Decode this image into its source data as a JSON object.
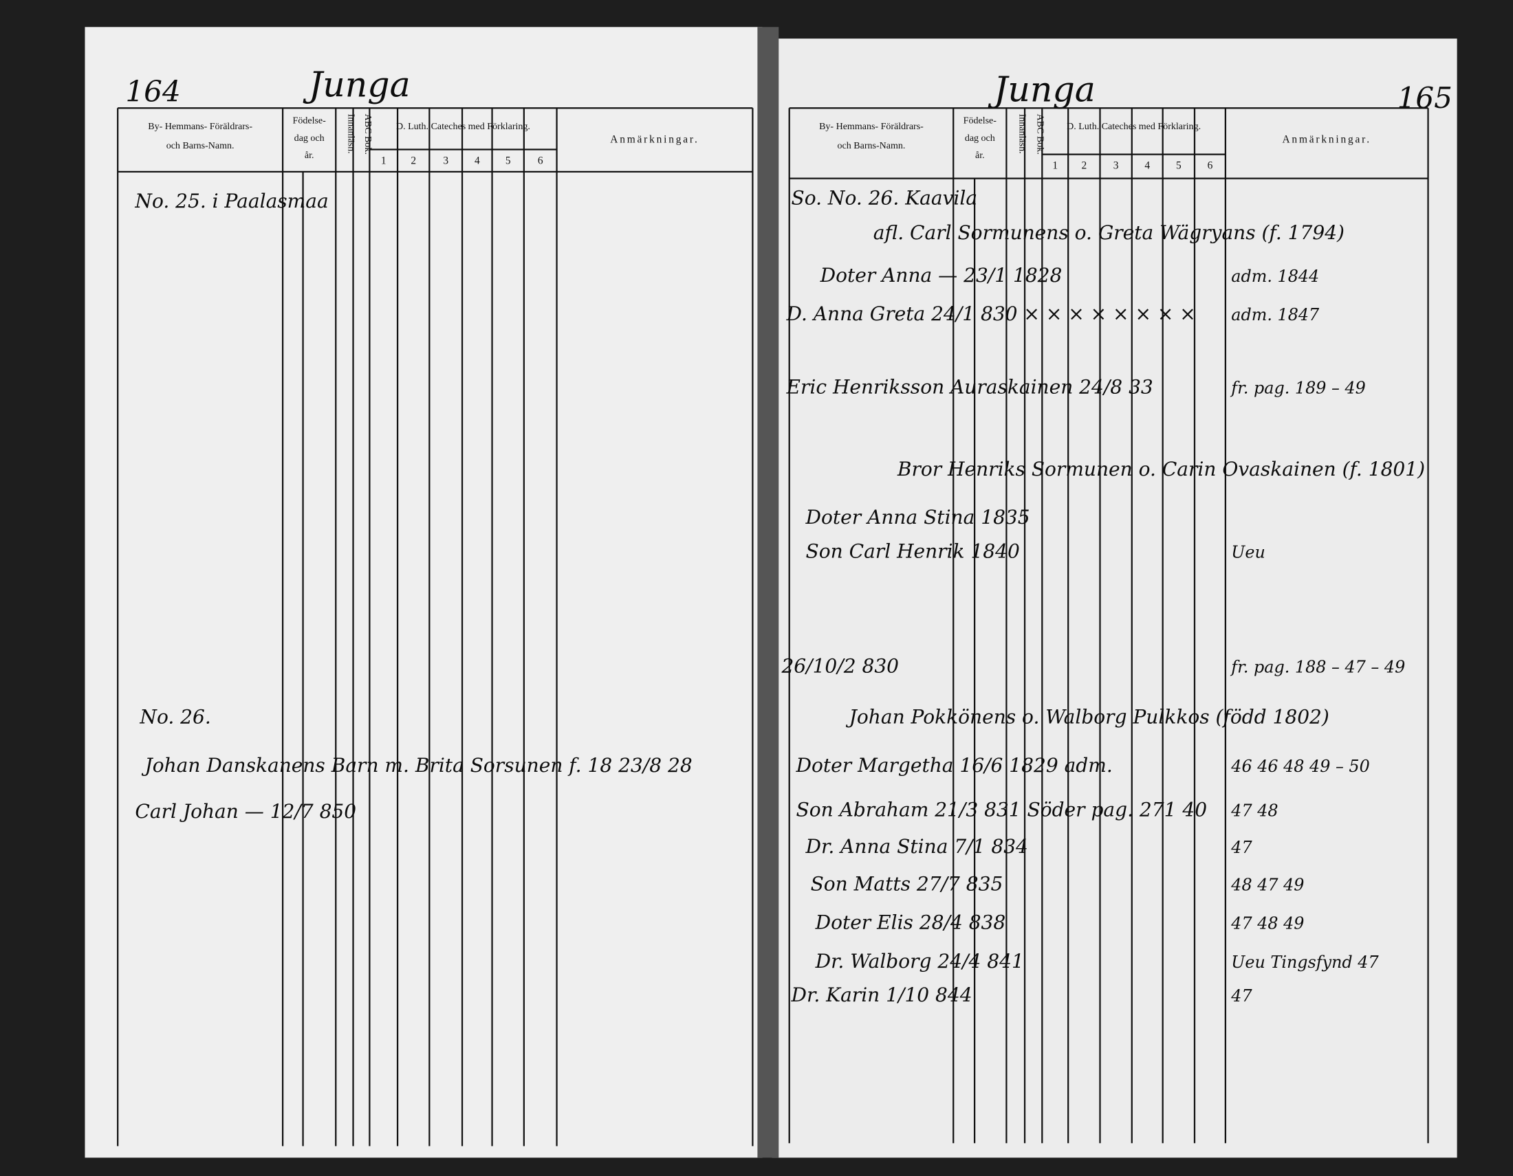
{
  "left_page": {
    "page_number": "164",
    "parish": "Junga",
    "headers": {
      "name": [
        "By- Hemmans- Föräldrars-",
        "och Barns-Namn."
      ],
      "birth": [
        "Födelse-",
        "dag och",
        "år."
      ],
      "reading": "Innanläsn.",
      "abc": "ABC Bok.",
      "catechism": "D. Luth. Cateches med Förklaring.",
      "catechism_numbers": [
        "1",
        "2",
        "3",
        "4",
        "5",
        "6"
      ],
      "remarks": "Anmärkningar."
    },
    "entries": [
      {
        "text": "No. 25. i Paalasmaa"
      },
      {
        "text": "No. 26."
      },
      {
        "text": "Johan Danskanens Barn m. Brita Sorsunen f. 18 23/8 28"
      },
      {
        "text": "Carl Johan — 12/7 850"
      }
    ]
  },
  "right_page": {
    "page_number": "165",
    "parish": "Junga",
    "headers": {
      "name": [
        "By- Hemmans- Föräldrars-",
        "och Barns-Namn."
      ],
      "birth": [
        "Födelse-",
        "dag och",
        "år."
      ],
      "reading": "Innanläsn.",
      "abc": "ABC Bok.",
      "catechism": "D. Luth. Cateches med Förklaring.",
      "catechism_numbers": [
        "1",
        "2",
        "3",
        "4",
        "5",
        "6"
      ],
      "remarks": "Anmärkningar."
    },
    "entries": [
      {
        "text": "So. No. 26. Kaavila"
      },
      {
        "text": "afl. Carl Sormunens o. Greta Wägryans (f. 1794)"
      },
      {
        "text": "Doter Anna — 23/1 1828",
        "note": "adm. 1844"
      },
      {
        "text": "D. Anna Greta 24/1 830 × × × × × × × ×",
        "note": "adm. 1847"
      },
      {
        "text": "Eric Henriksson Auraskainen 24/8 33",
        "note": "fr. pag. 189 – 49"
      },
      {
        "text": "Bror Henriks Sormunen o. Carin Ovaskainen (f. 1801)"
      },
      {
        "text": "Doter Anna Stina 1835"
      },
      {
        "text": "Son Carl Henrik 1840",
        "note": "Ueu"
      },
      {
        "text": "26/10/2 830",
        "note": "fr. pag. 188 – 47 – 49"
      },
      {
        "text": "Johan Pokkönens o. Walborg Pulkkos (född 1802)"
      },
      {
        "text": "Doter Margetha 16/6 1829 adm.",
        "note": "46 46 48 49 – 50"
      },
      {
        "text": "Son Abraham 21/3 831 Söder pag. 271 40",
        "note": "47 48"
      },
      {
        "text": "Dr. Anna Stina 7/1 834",
        "note": "47"
      },
      {
        "text": "Son Matts 27/7 835",
        "note": "48 47 49"
      },
      {
        "text": "Doter Elis 28/4 838",
        "note": "47 48 49"
      },
      {
        "text": "Dr. Walborg 24/4 841",
        "note": "Ueu Tingsfynd 47"
      },
      {
        "text": "Dr. Karin 1/10 844",
        "note": "47"
      }
    ]
  }
}
